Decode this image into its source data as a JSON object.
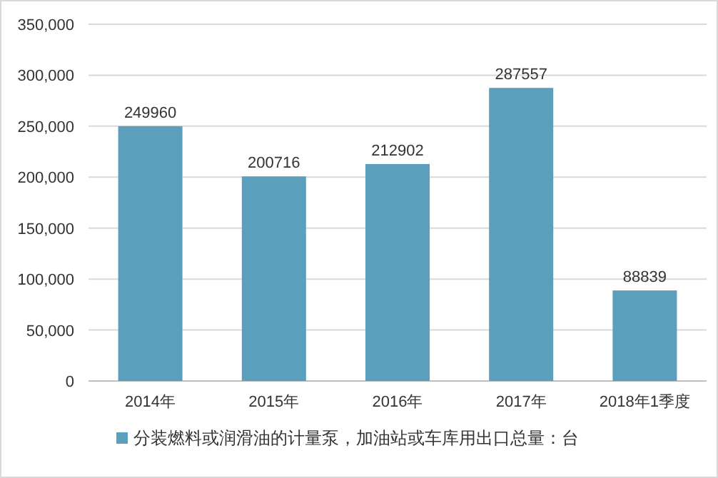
{
  "chart_data": {
    "type": "bar",
    "categories": [
      "2014年",
      "2015年",
      "2016年",
      "2017年",
      "2018年1季度"
    ],
    "series": [
      {
        "name": "分装燃料或润滑油的计量泵，加油站或车库用出口总量：台",
        "color": "#5b9fbd",
        "values": [
          249960,
          200716,
          212902,
          287557,
          88839
        ]
      }
    ],
    "ylim": [
      0,
      350000
    ],
    "yticks": [
      {
        "value": 0,
        "label": "0"
      },
      {
        "value": 50000,
        "label": "50,000"
      },
      {
        "value": 100000,
        "label": "100,000"
      },
      {
        "value": 150000,
        "label": "150,000"
      },
      {
        "value": 200000,
        "label": "200,000"
      },
      {
        "value": 250000,
        "label": "250,000"
      },
      {
        "value": 300000,
        "label": "300,000"
      },
      {
        "value": 350000,
        "label": "350,000"
      }
    ],
    "grid": "y",
    "legend": "bottom",
    "data_labels": true
  }
}
